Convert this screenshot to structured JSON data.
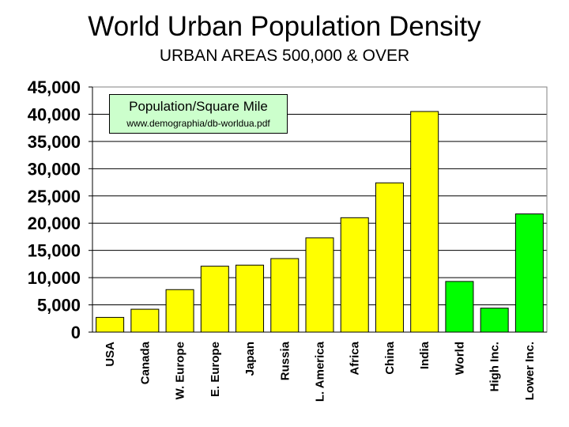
{
  "chart_data": {
    "type": "bar",
    "title": "World Urban Population Density",
    "subtitle": "URBAN AREAS 500,000 & OVER",
    "categories": [
      "USA",
      "Canada",
      "W. Europe",
      "E. Europe",
      "Japan",
      "Russia",
      "L. America",
      "Africa",
      "China",
      "India",
      "World",
      "High Inc.",
      "Lower Inc."
    ],
    "values": [
      2700,
      4200,
      7800,
      12100,
      12300,
      13500,
      17300,
      21000,
      27400,
      40500,
      9300,
      4400,
      21700
    ],
    "bar_colors": [
      "#ffff00",
      "#ffff00",
      "#ffff00",
      "#ffff00",
      "#ffff00",
      "#ffff00",
      "#ffff00",
      "#ffff00",
      "#ffff00",
      "#ffff00",
      "#00ff00",
      "#00ff00",
      "#00ff00"
    ],
    "ylim": [
      0,
      45000
    ],
    "yticks": [
      0,
      5000,
      10000,
      15000,
      20000,
      25000,
      30000,
      35000,
      40000,
      45000
    ],
    "ytick_labels": [
      "0",
      "5,000",
      "10,000",
      "15,000",
      "20,000",
      "25,000",
      "30,000",
      "35,000",
      "40,000",
      "45,000"
    ],
    "grid": true,
    "legend": {
      "title": "Population/Square Mile",
      "source": "www.demographia/db-worldua.pdf",
      "placement": "top-left"
    }
  }
}
